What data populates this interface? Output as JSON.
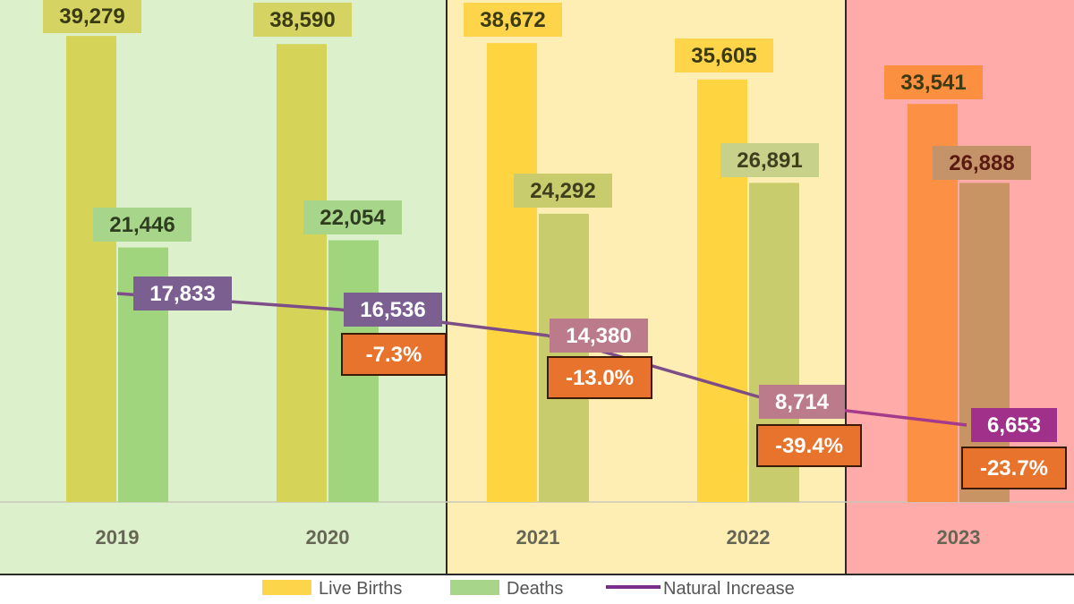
{
  "chart_data": {
    "type": "bar",
    "categories": [
      "2019",
      "2020",
      "2021",
      "2022",
      "2023"
    ],
    "series": [
      {
        "name": "Live Births",
        "values": [
          39279,
          38590,
          38672,
          35605,
          33541
        ]
      },
      {
        "name": "Deaths",
        "values": [
          21446,
          22054,
          24292,
          26891,
          26888
        ]
      },
      {
        "name": "Natural Increase",
        "type": "line",
        "values": [
          17833,
          16536,
          14380,
          8714,
          6653
        ]
      }
    ],
    "value_labels": {
      "births": [
        "39,279",
        "38,590",
        "38,672",
        "35,605",
        "33,541"
      ],
      "deaths": [
        "21,446",
        "22,054",
        "24,292",
        "26,891",
        "26,888"
      ],
      "increase": [
        "17,833",
        "16,536",
        "14,380",
        "8,714",
        "6,653"
      ]
    },
    "pct_changes": [
      null,
      "-7.3%",
      "-13.0%",
      "-39.4%",
      "-23.7%"
    ],
    "legend": {
      "births": "Live Births",
      "deaths": "Deaths",
      "increase": "Natural Increase"
    },
    "ylim": [
      0,
      42000
    ],
    "grid": false,
    "legend_position": "bottom",
    "colors": {
      "zone_green": "#dcf0cb",
      "zone_yellow": "#feeeb4",
      "zone_red": "#ffabaa",
      "births": [
        "#d6d458",
        "#d6d458",
        "#fed540",
        "#fed540",
        "#fc9145"
      ],
      "births_label_bg": [
        "#d5d361",
        "#d5d361",
        "#fdd44a",
        "#fdd44a",
        "#fd9040"
      ],
      "deaths": [
        "#a0d47d",
        "#a0d47d",
        "#c9cc6d",
        "#c9cc6d",
        "#c89464"
      ],
      "deaths_label_bg": [
        "#a7d68b",
        "#a7d68b",
        "#c9cc6d",
        "#c7d18a",
        "#c5936a"
      ],
      "deaths_label_text": [
        "#2e3d1f",
        "#2e3d1f",
        "#3f3f1e",
        "#3f3f1e",
        "#5a1a10"
      ],
      "line": "#7d4d88",
      "line_end": "#a63a8a",
      "increase_label_bg": [
        "#7a5f90",
        "#7a5f90",
        "#bb7b8a",
        "#bb7b8a",
        "#a0308a"
      ],
      "increase_label_text": "#ffffff",
      "pct_bg": "#e8732c",
      "pct_border": "#3c1a08",
      "pct_text": "#ffffff",
      "legend_births": "#fdd54a",
      "legend_deaths": "#a7d68b",
      "legend_line": "#7b2d8c"
    }
  }
}
